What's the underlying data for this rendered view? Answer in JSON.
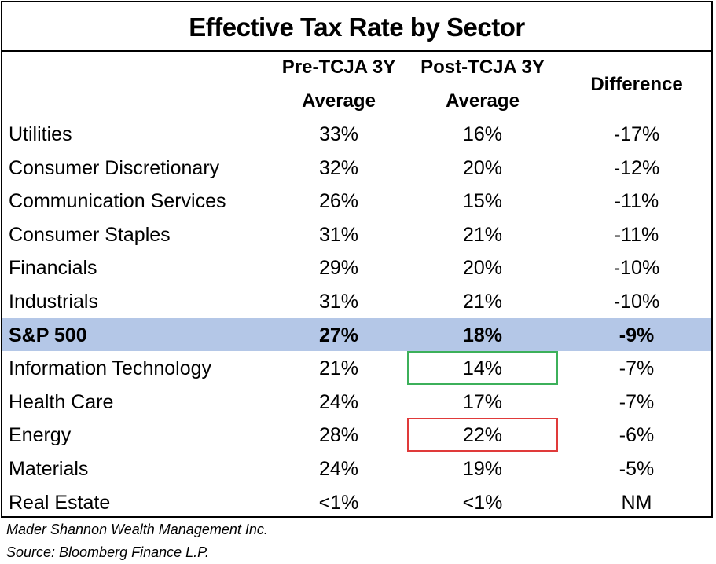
{
  "title": "Effective Tax Rate by Sector",
  "headers": {
    "pre": [
      "Pre-TCJA 3Y",
      "Average"
    ],
    "post": [
      "Post-TCJA 3Y",
      "Average"
    ],
    "diff": "Difference"
  },
  "rows": [
    {
      "sector": "Utilities",
      "pre": "33%",
      "post": "16%",
      "diff": "-17%"
    },
    {
      "sector": "Consumer Discretionary",
      "pre": "32%",
      "post": "20%",
      "diff": "-12%"
    },
    {
      "sector": "Communication Services",
      "pre": "26%",
      "post": "15%",
      "diff": "-11%"
    },
    {
      "sector": "Consumer Staples",
      "pre": "31%",
      "post": "21%",
      "diff": "-11%"
    },
    {
      "sector": "Financials",
      "pre": "29%",
      "post": "20%",
      "diff": "-10%"
    },
    {
      "sector": "Industrials",
      "pre": "31%",
      "post": "21%",
      "diff": "-10%"
    },
    {
      "sector": "S&P 500",
      "pre": "27%",
      "post": "18%",
      "diff": "-9%",
      "highlight": true
    },
    {
      "sector": "Information Technology",
      "pre": "21%",
      "post": "14%",
      "diff": "-7%",
      "box": "#3cb05a"
    },
    {
      "sector": "Health Care",
      "pre": "24%",
      "post": "17%",
      "diff": "-7%"
    },
    {
      "sector": "Energy",
      "pre": "28%",
      "post": "22%",
      "diff": "-6%",
      "box": "#e03a3a"
    },
    {
      "sector": "Materials",
      "pre": "24%",
      "post": "19%",
      "diff": "-5%"
    },
    {
      "sector": "Real Estate",
      "pre": "<1%",
      "post": "<1%",
      "diff": "NM"
    }
  ],
  "notes": [
    "Mader Shannon Wealth Management Inc.",
    "Source: Bloomberg Finance L.P."
  ],
  "colors": {
    "highlight": "#b4c7e7"
  }
}
